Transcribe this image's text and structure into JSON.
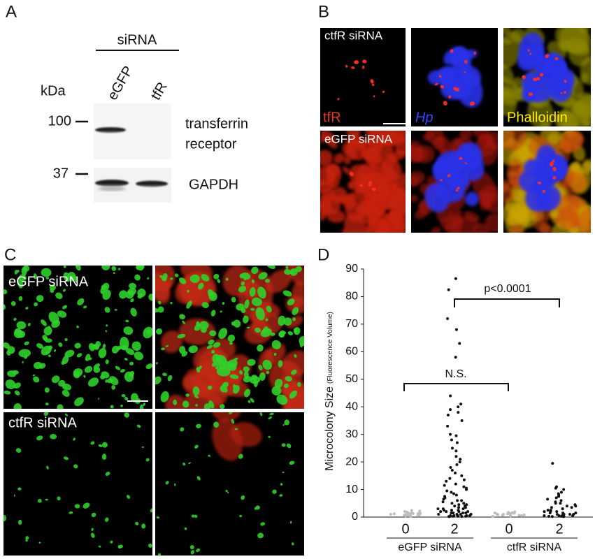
{
  "panel_a": {
    "label": "A",
    "header": "siRNA",
    "lanes": [
      "eGFP",
      "tfR"
    ],
    "kda_label": "kDa",
    "markers": [
      "100",
      "37"
    ],
    "bands": [
      [
        "transferrin",
        "receptor"
      ],
      [
        "GAPDH"
      ]
    ]
  },
  "panel_b": {
    "label": "B",
    "rows": [
      "ctfR siRNA",
      "eGFP siRNA"
    ],
    "channels": [
      "tfR",
      "Hp",
      "Phalloidin"
    ]
  },
  "panel_c": {
    "label": "C",
    "rows": [
      "eGFP siRNA",
      "ctfR siRNA"
    ]
  },
  "chart_data": {
    "type": "strip",
    "panel_label": "D",
    "ylabel": "Microcolony Size",
    "ylabel_sub": "(Fluorescence Volume)",
    "ylim": [
      0,
      90
    ],
    "yticks": [
      0,
      10,
      20,
      30,
      40,
      50,
      60,
      70,
      80,
      90
    ],
    "categories": [
      "0",
      "2",
      "0",
      "2"
    ],
    "groups": [
      "eGFP siRNA",
      "ctfR siRNA"
    ],
    "annotations": [
      "N.S.",
      "p<0.0001"
    ],
    "series": [
      {
        "color": "#bdbdbd",
        "values": [
          0.3,
          0.5,
          0.6,
          0.8,
          0.9,
          1.0,
          1.1,
          1.2,
          1.3,
          1.4,
          1.5,
          1.6,
          1.8,
          2.0,
          2.2,
          2.4,
          0.4,
          0.7,
          1.0,
          1.3
        ]
      },
      {
        "color": "#111111",
        "values": [
          86.5,
          82.5,
          72,
          68,
          63,
          58,
          44,
          41,
          40,
          39,
          38,
          37,
          35,
          33,
          30,
          29.5,
          28,
          27,
          25,
          24,
          22,
          21,
          20,
          19,
          18,
          17,
          16,
          15,
          14,
          13.5,
          13,
          12,
          11.5,
          11,
          10.5,
          10,
          9.5,
          9,
          8.5,
          8,
          7.5,
          7,
          6.5,
          6,
          6,
          5.5,
          5,
          5,
          4.5,
          4.5,
          4,
          4,
          3.5,
          3.5,
          3,
          3,
          3,
          2.5,
          2.5,
          2.5,
          2,
          2,
          2,
          2,
          1.5,
          1.5,
          1.5,
          1.5,
          1,
          1,
          1,
          1,
          1,
          0.5,
          0.5,
          0.5,
          0.5,
          0.5,
          0.3,
          0.3,
          0.3,
          0.2,
          0.2,
          0.2
        ]
      },
      {
        "color": "#bdbdbd",
        "values": [
          0.3,
          0.5,
          0.6,
          0.8,
          0.9,
          1.0,
          1.1,
          1.2,
          1.3,
          1.4,
          1.5,
          1.6,
          1.7,
          1.9,
          0.4,
          0.7,
          1.0,
          1.2
        ]
      },
      {
        "color": "#111111",
        "values": [
          19.5,
          11,
          10.5,
          10,
          9,
          8.5,
          8,
          7.5,
          7,
          6.5,
          6,
          5.5,
          5,
          5,
          4.5,
          4,
          4,
          3.5,
          3.5,
          3,
          3,
          2.5,
          2.5,
          2,
          2,
          2,
          1.5,
          1.5,
          1.5,
          1,
          1,
          1,
          1,
          0.5,
          0.5,
          0.5,
          0.5,
          0.3,
          0.3,
          0.2,
          0.2,
          0.2
        ]
      }
    ]
  }
}
